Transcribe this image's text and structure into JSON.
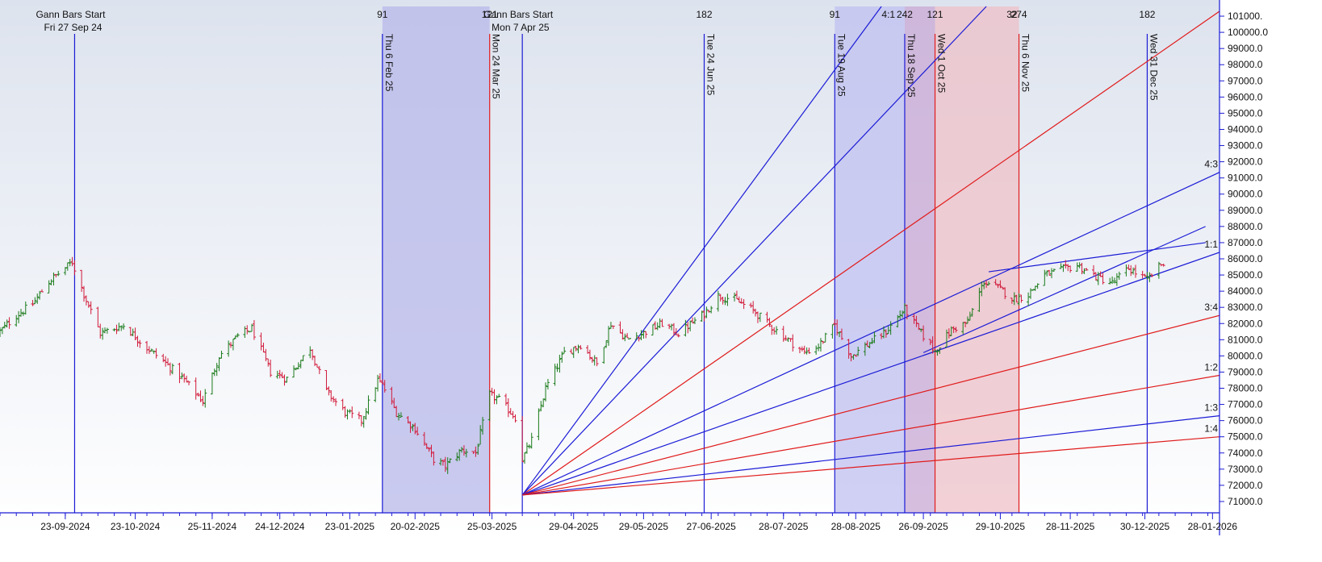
{
  "chart_data": {
    "type": "ohlc",
    "instrument_note": "",
    "y_axis": {
      "ticks": [
        71000,
        72000,
        73000,
        74000,
        75000,
        76000,
        77000,
        78000,
        79000,
        80000,
        81000,
        82000,
        83000,
        84000,
        85000,
        86000,
        87000,
        88000,
        89000,
        90000,
        91000,
        92000,
        93000,
        94000,
        95000,
        96000,
        97000,
        98000,
        99000,
        100000,
        101000
      ],
      "tick_labels": [
        "71000.0",
        "72000.0",
        "73000.0",
        "74000.0",
        "75000.0",
        "76000.0",
        "77000.0",
        "78000.0",
        "79000.0",
        "80000.0",
        "81000.0",
        "82000.0",
        "83000.0",
        "84000.0",
        "85000.0",
        "86000.0",
        "87000.0",
        "88000.0",
        "89000.0",
        "90000.0",
        "91000.0",
        "92000.0",
        "93000.0",
        "94000.0",
        "95000.0",
        "96000.0",
        "97000.0",
        "98000.0",
        "99000.0",
        "100000.0",
        "101000."
      ],
      "range": [
        70300,
        101600
      ]
    },
    "x_axis": {
      "range": [
        "2024-08-26",
        "2026-01-31"
      ],
      "ticks": [
        {
          "date": "2024-09-23",
          "label": "23-09-2024"
        },
        {
          "date": "2024-10-23",
          "label": "23-10-2024"
        },
        {
          "date": "2024-11-25",
          "label": "25-11-2024"
        },
        {
          "date": "2024-12-24",
          "label": "24-12-2024"
        },
        {
          "date": "2025-01-23",
          "label": "23-01-2025"
        },
        {
          "date": "2025-02-20",
          "label": "20-02-2025"
        },
        {
          "date": "2025-03-25",
          "label": "25-03-2025"
        },
        {
          "date": "2025-04-29",
          "label": "29-04-2025"
        },
        {
          "date": "2025-05-29",
          "label": "29-05-2025"
        },
        {
          "date": "2025-06-27",
          "label": "27-06-2025"
        },
        {
          "date": "2025-07-28",
          "label": "28-07-2025"
        },
        {
          "date": "2025-08-28",
          "label": "28-08-2025"
        },
        {
          "date": "2025-09-26",
          "label": "26-09-2025"
        },
        {
          "date": "2025-10-29",
          "label": "29-10-2025"
        },
        {
          "date": "2025-11-28",
          "label": "28-11-2025"
        },
        {
          "date": "2025-12-30",
          "label": "30-12-2025"
        },
        {
          "date": "2026-01-28",
          "label": "28-01-2026"
        }
      ]
    },
    "price_path": [
      [
        "2024-08-26",
        81500
      ],
      [
        "2024-09-02",
        82500
      ],
      [
        "2024-09-09",
        83200
      ],
      [
        "2024-09-16",
        84600
      ],
      [
        "2024-09-26",
        85800
      ],
      [
        "2024-10-01",
        83800
      ],
      [
        "2024-10-08",
        81400
      ],
      [
        "2024-10-18",
        81900
      ],
      [
        "2024-10-28",
        80500
      ],
      [
        "2024-11-04",
        79700
      ],
      [
        "2024-11-13",
        78500
      ],
      [
        "2024-11-21",
        77200
      ],
      [
        "2024-11-28",
        80000
      ],
      [
        "2024-12-06",
        81200
      ],
      [
        "2024-12-12",
        81700
      ],
      [
        "2024-12-20",
        79000
      ],
      [
        "2024-12-27",
        78600
      ],
      [
        "2025-01-06",
        80500
      ],
      [
        "2025-01-13",
        77800
      ],
      [
        "2025-01-21",
        76500
      ],
      [
        "2025-01-28",
        76000
      ],
      [
        "2025-02-04",
        78500
      ],
      [
        "2025-02-06",
        78200
      ],
      [
        "2025-02-12",
        76500
      ],
      [
        "2025-02-20",
        75500
      ],
      [
        "2025-02-28",
        73600
      ],
      [
        "2025-03-05",
        73200
      ],
      [
        "2025-03-12",
        74200
      ],
      [
        "2025-03-18",
        74000
      ],
      [
        "2025-03-24",
        77600
      ],
      [
        "2025-03-28",
        77300
      ],
      [
        "2025-04-04",
        76200
      ],
      [
        "2025-04-07",
        73600
      ],
      [
        "2025-04-11",
        74800
      ],
      [
        "2025-04-17",
        78000
      ],
      [
        "2025-04-25",
        80200
      ],
      [
        "2025-05-02",
        80700
      ],
      [
        "2025-05-09",
        79500
      ],
      [
        "2025-05-15",
        82000
      ],
      [
        "2025-05-22",
        81000
      ],
      [
        "2025-05-30",
        81500
      ],
      [
        "2025-06-06",
        82000
      ],
      [
        "2025-06-13",
        81400
      ],
      [
        "2025-06-24",
        82600
      ],
      [
        "2025-06-30",
        83700
      ],
      [
        "2025-07-07",
        83500
      ],
      [
        "2025-07-15",
        82800
      ],
      [
        "2025-07-22",
        81900
      ],
      [
        "2025-07-30",
        81000
      ],
      [
        "2025-08-06",
        80200
      ],
      [
        "2025-08-12",
        80600
      ],
      [
        "2025-08-19",
        81900
      ],
      [
        "2025-08-26",
        80000
      ],
      [
        "2025-09-02",
        80700
      ],
      [
        "2025-09-10",
        81500
      ],
      [
        "2025-09-18",
        82900
      ],
      [
        "2025-09-24",
        81600
      ],
      [
        "2025-10-01",
        80300
      ],
      [
        "2025-10-08",
        81600
      ],
      [
        "2025-10-15",
        82100
      ],
      [
        "2025-10-22",
        84600
      ],
      [
        "2025-10-28",
        84200
      ],
      [
        "2025-11-04",
        83500
      ],
      [
        "2025-11-10",
        83800
      ],
      [
        "2025-11-17",
        85000
      ],
      [
        "2025-11-24",
        85300
      ],
      [
        "2025-12-01",
        85600
      ],
      [
        "2025-12-09",
        84900
      ],
      [
        "2025-12-16",
        84500
      ],
      [
        "2025-12-23",
        85400
      ],
      [
        "2025-12-31",
        84700
      ],
      [
        "2026-01-07",
        85800
      ]
    ],
    "vertical_markers": [
      {
        "date": "2024-09-27",
        "color": "#1b1bd6",
        "label": "Fri 27 Sep 24",
        "top_label": "Gann Bars Start"
      },
      {
        "date": "2025-02-06",
        "color": "#1b1bd6",
        "label": "Thu 6 Feb 25",
        "top_label": "91"
      },
      {
        "date": "2025-03-24",
        "color": "#e01b1b",
        "label": "Mon 24 Mar 25",
        "top_label": "121"
      },
      {
        "date": "2025-04-07",
        "color": "#1b1bd6",
        "label": "Mon 7 Apr 25",
        "top_label": "Gann Bars Start"
      },
      {
        "date": "2025-06-24",
        "color": "#1b1bd6",
        "label": "Tue 24 Jun 25",
        "top_label": "182"
      },
      {
        "date": "2025-08-19",
        "color": "#1b1bd6",
        "label": "Tue 19 Aug 25",
        "top_label": "91"
      },
      {
        "date": "2025-09-18",
        "color": "#1b1bd6",
        "label": "Thu 18 Sep 25",
        "top_label": "242"
      },
      {
        "date": "2025-10-01",
        "color": "#e01b1b",
        "label": "Wed 1 Oct 25",
        "top_label": "121"
      },
      {
        "date": "2025-11-06",
        "color": "#e01b1b",
        "label": "Thu 6 Nov 25",
        "top_label": "274"
      },
      {
        "date": "2025-12-31",
        "color": "#1b1bd6",
        "label": "Wed 31 Dec 25",
        "top_label": "182"
      }
    ],
    "extra_top_labels": [
      {
        "text": "4:1",
        "date": "2025-09-11"
      },
      {
        "text": "32",
        "date": "2025-11-03"
      }
    ],
    "shaded_regions": [
      {
        "from": "2025-02-06",
        "to": "2025-03-24",
        "color": "#b8b8ea"
      },
      {
        "from": "2025-08-19",
        "to": "2025-09-18",
        "color": "#c0c0f0"
      },
      {
        "from": "2025-09-18",
        "to": "2025-10-01",
        "color": "#c8a8d4"
      },
      {
        "from": "2025-10-01",
        "to": "2025-11-06",
        "color": "#eec0c8"
      }
    ],
    "gann_fan": {
      "origin": {
        "date": "2025-04-07",
        "price": 71400
      },
      "rays": [
        {
          "label": "",
          "color": "#1b1bd6",
          "to": {
            "date": "2025-09-08",
            "price": 101600
          }
        },
        {
          "label": "",
          "color": "#1b1bd6",
          "to": {
            "date": "2025-10-23",
            "price": 101600
          }
        },
        {
          "label": "",
          "color": "#e01b1b",
          "to": {
            "date": "2026-01-31",
            "price": 101300
          }
        },
        {
          "label": "4:3",
          "color": "#1b1bd6",
          "to": {
            "date": "2026-01-31",
            "price": 91350
          }
        },
        {
          "label": "1:1",
          "color": "#1b1bd6",
          "to": {
            "date": "2026-01-31",
            "price": 86400
          }
        },
        {
          "label": "3:4",
          "color": "#e01b1b",
          "to": {
            "date": "2026-01-31",
            "price": 82500
          }
        },
        {
          "label": "1:2",
          "color": "#e01b1b",
          "to": {
            "date": "2026-01-31",
            "price": 78800
          }
        },
        {
          "label": "1:3",
          "color": "#1b1bd6",
          "to": {
            "date": "2026-01-31",
            "price": 76300
          }
        },
        {
          "label": "1:4",
          "color": "#e01b1b",
          "to": {
            "date": "2026-01-31",
            "price": 75000
          }
        }
      ]
    },
    "trend_lines": [
      {
        "color": "#1b1bd6",
        "from": {
          "date": "2025-09-26",
          "price": 80200
        },
        "to": {
          "date": "2026-01-25",
          "price": 88000
        }
      },
      {
        "color": "#1b1bd6",
        "from": {
          "date": "2025-10-24",
          "price": 85200
        },
        "to": {
          "date": "2026-01-25",
          "price": 87000
        }
      }
    ],
    "colors": {
      "up_bar": "#1a7a1a",
      "down_bar": "#d21a3a",
      "axis": "#1b1bd6",
      "background_top": "#dde3ee",
      "background_bottom": "#ffffff"
    }
  }
}
